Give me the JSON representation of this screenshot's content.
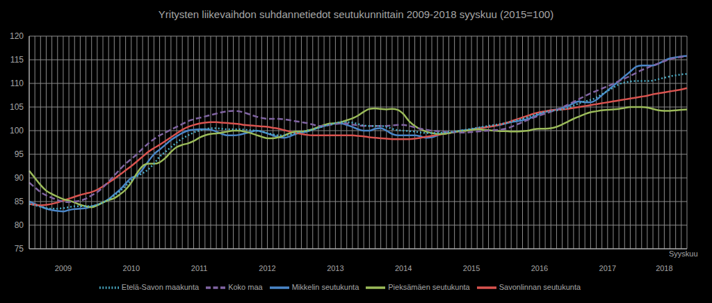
{
  "chart_data": {
    "type": "line",
    "title": "Yritysten liikevaihdon suhdannetiedot seutukunnittain 2009-2018 syyskuu (2015=100)",
    "xlabel": "Syyskuu",
    "categories": [
      null,
      null,
      null,
      null,
      null,
      null,
      "2009",
      null,
      null,
      null,
      null,
      null,
      null,
      null,
      null,
      null,
      null,
      null,
      "2010",
      null,
      null,
      null,
      null,
      null,
      null,
      null,
      null,
      null,
      null,
      null,
      "2011",
      null,
      null,
      null,
      null,
      null,
      null,
      null,
      null,
      null,
      null,
      null,
      "2012",
      null,
      null,
      null,
      null,
      null,
      null,
      null,
      null,
      null,
      null,
      null,
      "2013",
      null,
      null,
      null,
      null,
      null,
      null,
      null,
      null,
      null,
      null,
      null,
      "2014",
      null,
      null,
      null,
      null,
      null,
      null,
      null,
      null,
      null,
      null,
      null,
      "2015",
      null,
      null,
      null,
      null,
      null,
      null,
      null,
      null,
      null,
      null,
      null,
      "2016",
      null,
      null,
      null,
      null,
      null,
      null,
      null,
      null,
      null,
      null,
      null,
      "2017",
      null,
      null,
      null,
      null,
      null,
      null,
      null,
      null,
      null,
      "2018",
      null,
      null,
      null,
      null
    ],
    "series": [
      {
        "name": "Mikkelin seutukunta",
        "color": "#4a86c8",
        "line_style": "solid",
        "values": [
          85,
          84.5,
          84,
          83.5,
          83.2,
          83,
          82.9,
          83.2,
          83.4,
          83.5,
          83.6,
          84,
          84.3,
          84.8,
          85.5,
          86.5,
          87.5,
          88.8,
          90,
          90.5,
          91.8,
          93.5,
          95,
          96,
          97,
          98,
          98.8,
          99.5,
          100,
          100.2,
          100.3,
          100.3,
          100.2,
          99.8,
          99.3,
          99,
          99,
          99.1,
          99.4,
          99.7,
          100,
          99.8,
          99.4,
          99,
          98.6,
          98.5,
          98.8,
          99.3,
          99.6,
          99.8,
          100.2,
          100.6,
          101,
          101.3,
          101.5,
          101.5,
          101.2,
          100.8,
          100.3,
          100,
          100,
          100.4,
          100.5,
          100,
          99.3,
          99,
          99,
          99,
          99,
          98.8,
          98.5,
          98.6,
          99,
          99.4,
          99.5,
          99.7,
          100,
          100.1,
          100.3,
          100.5,
          100.7,
          100.8,
          101,
          101.2,
          101.5,
          101.8,
          102,
          102.2,
          102.5,
          103,
          103.5,
          104,
          104.3,
          104.5,
          104.8,
          105.2,
          105.8,
          106.2,
          106,
          106,
          106.5,
          107.5,
          108.5,
          109.5,
          110.5,
          111.5,
          112.5,
          113.5,
          113.8,
          113.8,
          113.8,
          114.2,
          114.8,
          115.3,
          115.5,
          115.7,
          115.8
        ]
      },
      {
        "name": "Savonlinnan seutukunta",
        "color": "#d9534f",
        "line_style": "solid",
        "values": [
          84.5,
          84.3,
          84.2,
          84.3,
          84.5,
          84.8,
          85.2,
          85.6,
          86,
          86.4,
          86.7,
          87,
          87.5,
          88.2,
          89,
          89.8,
          90.7,
          91.6,
          92.5,
          93.5,
          94.5,
          95.5,
          96.3,
          97,
          97.8,
          98.6,
          99.4,
          100.2,
          100.8,
          101.2,
          101.5,
          101.7,
          101.8,
          101.8,
          101.7,
          101.6,
          101.5,
          101.4,
          101.2,
          101.1,
          101,
          100.9,
          100.8,
          100.6,
          100.4,
          100.1,
          99.8,
          99.5,
          99.3,
          99.1,
          99,
          99,
          99,
          99,
          99,
          99,
          99,
          99,
          98.9,
          98.8,
          98.6,
          98.5,
          98.4,
          98.3,
          98.2,
          98.2,
          98.2,
          98.2,
          98.3,
          98.5,
          98.7,
          98.9,
          99.1,
          99.3,
          99.5,
          99.7,
          99.9,
          100,
          100.2,
          100.4,
          100.6,
          100.8,
          101,
          101.3,
          101.6,
          102,
          102.4,
          102.8,
          103.2,
          103.6,
          103.9,
          104.1,
          104.3,
          104.4,
          104.5,
          104.6,
          104.8,
          105,
          105.2,
          105.4,
          105.6,
          105.8,
          106,
          106.2,
          106.4,
          106.6,
          106.8,
          107,
          107.2,
          107.4,
          107.7,
          107.9,
          108.1,
          108.3,
          108.5,
          108.7,
          109
        ]
      },
      {
        "name": "Pieksämäen seutukunta",
        "color": "#9bbb59",
        "line_style": "solid",
        "values": [
          91.5,
          90,
          88.5,
          87.3,
          86.6,
          86,
          85.5,
          85.2,
          84.8,
          84.3,
          84,
          83.8,
          84.2,
          84.8,
          85.3,
          85.7,
          86.5,
          87.5,
          89,
          91,
          92.5,
          93,
          93,
          93.3,
          94.2,
          95.5,
          96.5,
          97,
          97.3,
          97.8,
          98.5,
          99,
          99.3,
          99.4,
          99.6,
          99.8,
          100,
          100,
          99.8,
          99.5,
          99.1,
          98.7,
          98.4,
          98.4,
          98.6,
          99,
          99.5,
          99.8,
          99.8,
          100,
          100.3,
          100.8,
          101.2,
          101.5,
          101.6,
          101.8,
          102.2,
          102.6,
          103.2,
          104,
          104.6,
          104.7,
          104.6,
          104.5,
          104.6,
          104.4,
          103.5,
          102,
          101,
          100.3,
          99.8,
          99.5,
          99.3,
          99.3,
          99.5,
          99.7,
          99.9,
          100,
          100.2,
          100.3,
          100.2,
          100.1,
          100,
          99.9,
          99.9,
          99.8,
          99.8,
          99.9,
          100,
          100.3,
          100.4,
          100.4,
          100.5,
          100.8,
          101.3,
          101.9,
          102.5,
          103,
          103.5,
          103.9,
          104.1,
          104.3,
          104.4,
          104.5,
          104.6,
          104.8,
          105,
          105,
          105,
          104.9,
          104.6,
          104.3,
          104.2,
          104.2,
          104.3,
          104.4,
          104.5
        ]
      },
      {
        "name": "Koko maa",
        "color": "#8064a2",
        "line_style": "dashed",
        "values": [
          89,
          88,
          87,
          86.3,
          85.8,
          85.3,
          85,
          84.9,
          85,
          85.2,
          85.6,
          86.3,
          87,
          88,
          89.2,
          90.5,
          91.8,
          93,
          94,
          95,
          96.2,
          97.3,
          98.2,
          99,
          99.6,
          100.2,
          100.8,
          101.4,
          102,
          102.4,
          102.7,
          103,
          103.3,
          103.6,
          103.9,
          104.1,
          104.2,
          104.1,
          103.8,
          103.4,
          103,
          102.7,
          102.5,
          102.5,
          102.5,
          102.4,
          102.2,
          102,
          101.8,
          101.6,
          101.3,
          101,
          101,
          101.2,
          101.4,
          101.5,
          101.5,
          101.3,
          101.1,
          101,
          101,
          101,
          101,
          101,
          101.1,
          101.2,
          101.2,
          101,
          100.7,
          100.4,
          100.2,
          100,
          99.9,
          99.8,
          99.7,
          99.7,
          99.6,
          99.6,
          99.7,
          99.8,
          99.9,
          100,
          100.1,
          100.2,
          100.4,
          100.8,
          101.3,
          101.8,
          102.3,
          102.8,
          103.2,
          103.6,
          104,
          104.4,
          104.9,
          105.5,
          106.1,
          106.7,
          107.3,
          107.9,
          108.4,
          108.9,
          109.4,
          109.9,
          110.5,
          111,
          111.6,
          112.2,
          112.8,
          113.3,
          113.8,
          114.2,
          114.7,
          115.1,
          115.4,
          115.6,
          115.8
        ]
      },
      {
        "name": "Etelä-Savon maakunta",
        "color": "#4bacc6",
        "line_style": "dotted",
        "values": [
          84.5,
          84.2,
          83.9,
          83.6,
          83.5,
          83.5,
          83.6,
          83.8,
          84,
          84,
          84,
          84,
          84.3,
          84.8,
          85.4,
          86.3,
          87.2,
          88.3,
          89.5,
          90.3,
          91,
          91.8,
          93,
          94.5,
          95.5,
          96.5,
          97.5,
          98.3,
          99,
          99.6,
          100,
          100.3,
          100.5,
          100.5,
          100.4,
          100.3,
          100.3,
          100.3,
          100.2,
          100.1,
          100,
          99.8,
          99.5,
          99.2,
          99,
          99,
          99.2,
          99.5,
          99.7,
          100,
          100.3,
          100.6,
          101,
          101.3,
          101.6,
          101.8,
          101.8,
          101.7,
          101.4,
          101.1,
          101,
          101,
          101,
          100.8,
          100.4,
          100.1,
          100,
          99.9,
          99.8,
          99.6,
          99.5,
          99.5,
          99.5,
          99.6,
          99.7,
          99.8,
          100,
          100.2,
          100.4,
          100.6,
          100.8,
          101,
          101.2,
          101.4,
          101.6,
          101.9,
          102.2,
          102.5,
          102.9,
          103.3,
          103.7,
          104,
          104.2,
          104.3,
          104.5,
          104.8,
          105.3,
          105.8,
          106.2,
          106.5,
          107,
          107.7,
          108.4,
          109.1,
          109.8,
          110.2,
          110.4,
          110.5,
          110.5,
          110.5,
          110.6,
          110.9,
          111.2,
          111.5,
          111.7,
          111.9,
          112
        ]
      }
    ],
    "ylim": [
      75,
      120
    ],
    "yticks": [
      75,
      80,
      85,
      90,
      95,
      100,
      105,
      110,
      115,
      120
    ],
    "grid": true,
    "legend": "bottom"
  }
}
